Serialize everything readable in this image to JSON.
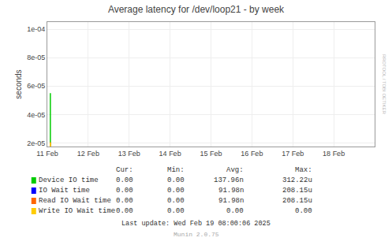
{
  "chart_data": {
    "type": "line",
    "title": "Average latency for /dev/loop21 - by week",
    "ylabel": "seconds",
    "x": [
      1739152000,
      1739152000
    ],
    "series": [
      {
        "name": "Device IO time",
        "color": "#00cc00",
        "values": [
          1.75e-05,
          5.5e-05
        ]
      },
      {
        "name": "Read IO Wait time",
        "color": "#ff6600",
        "values": [
          1.75e-05,
          2.05e-05
        ]
      },
      {
        "name": "Write IO Wait time",
        "color": "#ffcc00",
        "values": [
          1.75e-05,
          2.02e-05
        ]
      }
    ],
    "xlim": [
      1739145600,
      1739836800
    ],
    "xticks": [
      {
        "value": 1739145600,
        "label": "11 Feb"
      },
      {
        "value": 1739232000,
        "label": "12 Feb"
      },
      {
        "value": 1739318400,
        "label": "13 Feb"
      },
      {
        "value": 1739404800,
        "label": "14 Feb"
      },
      {
        "value": 1739491200,
        "label": "15 Feb"
      },
      {
        "value": 1739577600,
        "label": "16 Feb"
      },
      {
        "value": 1739664000,
        "label": "17 Feb"
      },
      {
        "value": 1739750400,
        "label": "18 Feb"
      }
    ],
    "ylim": [
      1.75e-05,
      0.000105
    ],
    "yticks": [
      {
        "value": 2e-05,
        "label": "2e-05"
      },
      {
        "value": 4e-05,
        "label": "4e-05"
      },
      {
        "value": 6e-05,
        "label": "6e-05"
      },
      {
        "value": 8e-05,
        "label": "8e-05"
      },
      {
        "value": 0.0001,
        "label": "1e-04"
      }
    ],
    "grid": true,
    "legend_table": {
      "headers": [
        "Cur:",
        "Min:",
        "Avg:",
        "Max:"
      ],
      "rows": [
        {
          "name": "Device IO time",
          "color": "#00cc00",
          "values": [
            "0.00",
            "0.00",
            "137.96n",
            "312.22u"
          ]
        },
        {
          "name": "IO Wait time",
          "color": "#0000ff",
          "values": [
            "0.00",
            "0.00",
            "91.98n",
            "208.15u"
          ]
        },
        {
          "name": "Read IO Wait time",
          "color": "#ff6600",
          "values": [
            "0.00",
            "0.00",
            "91.98n",
            "208.15u"
          ]
        },
        {
          "name": "Write IO Wait time",
          "color": "#ffcc00",
          "values": [
            "0.00",
            "0.00",
            "0.00",
            "0.00"
          ]
        }
      ]
    },
    "watermark": "RRDTOOL / TOBI OETIKER",
    "footer": [
      "Last update: Wed Feb 19 08:00:06 2025",
      "Munin 2.0.75"
    ]
  }
}
